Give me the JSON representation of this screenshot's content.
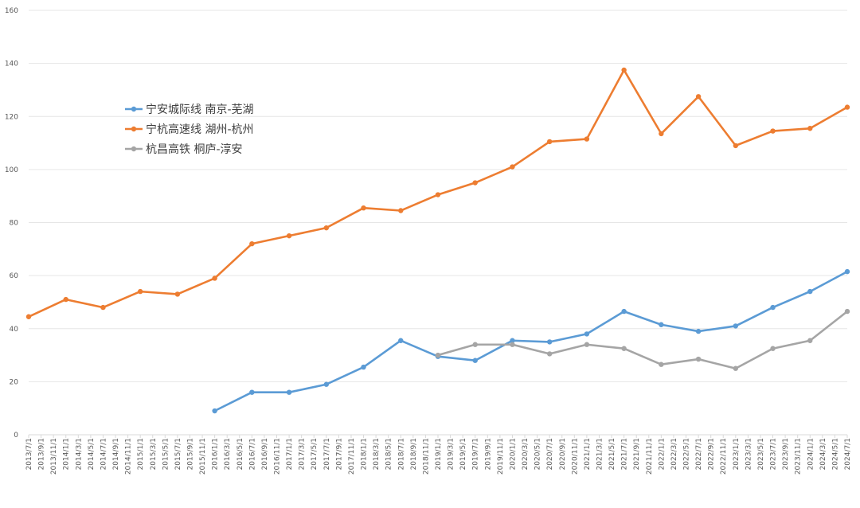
{
  "chart_data": {
    "type": "line",
    "ylim": [
      0,
      160
    ],
    "yticks": [
      0,
      20,
      40,
      60,
      80,
      100,
      120,
      140,
      160
    ],
    "grid": true,
    "legend_position": "top-left",
    "categories": [
      "2013/7/1",
      "2013/9/1",
      "2013/11/1",
      "2014/1/1",
      "2014/3/1",
      "2014/5/1",
      "2014/7/1",
      "2014/9/1",
      "2014/11/1",
      "2015/1/1",
      "2015/3/1",
      "2015/5/1",
      "2015/7/1",
      "2015/9/1",
      "2015/11/1",
      "2016/1/1",
      "2016/3/1",
      "2016/5/1",
      "2016/7/1",
      "2016/9/1",
      "2016/11/1",
      "2017/1/1",
      "2017/3/1",
      "2017/5/1",
      "2017/7/1",
      "2017/9/1",
      "2017/11/1",
      "2018/1/1",
      "2018/3/1",
      "2018/5/1",
      "2018/7/1",
      "2018/9/1",
      "2018/11/1",
      "2019/1/1",
      "2019/3/1",
      "2019/5/1",
      "2019/7/1",
      "2019/9/1",
      "2019/11/1",
      "2020/1/1",
      "2020/3/1",
      "2020/5/1",
      "2020/7/1",
      "2020/9/1",
      "2020/11/1",
      "2021/1/1",
      "2021/3/1",
      "2021/5/1",
      "2021/7/1",
      "2021/9/1",
      "2021/11/1",
      "2022/1/1",
      "2022/3/1",
      "2022/5/1",
      "2022/7/1",
      "2022/9/1",
      "2022/11/1",
      "2023/1/1",
      "2023/3/1",
      "2023/5/1",
      "2023/7/1",
      "2023/9/1",
      "2023/11/1",
      "2024/1/1",
      "2024/3/1",
      "2024/5/1",
      "2024/7/1"
    ],
    "series": [
      {
        "name": "宁安城际线 南京-芜湖",
        "color": "#5b9bd5",
        "points": [
          [
            "2016/1/1",
            9
          ],
          [
            "2016/7/1",
            16
          ],
          [
            "2017/1/1",
            16
          ],
          [
            "2017/7/1",
            19
          ],
          [
            "2018/1/1",
            25.5
          ],
          [
            "2018/7/1",
            35.5
          ],
          [
            "2019/1/1",
            29.5
          ],
          [
            "2019/7/1",
            28
          ],
          [
            "2020/1/1",
            35.5
          ],
          [
            "2020/7/1",
            35
          ],
          [
            "2021/1/1",
            38
          ],
          [
            "2021/7/1",
            46.5
          ],
          [
            "2022/1/1",
            41.5
          ],
          [
            "2022/7/1",
            39
          ],
          [
            "2023/1/1",
            41
          ],
          [
            "2023/7/1",
            48
          ],
          [
            "2024/1/1",
            54
          ],
          [
            "2024/7/1",
            61.5
          ]
        ]
      },
      {
        "name": "宁杭高速线 湖州-杭州",
        "color": "#ed7d31",
        "points": [
          [
            "2013/7/1",
            44.5
          ],
          [
            "2014/1/1",
            51
          ],
          [
            "2014/7/1",
            48
          ],
          [
            "2015/1/1",
            54
          ],
          [
            "2015/7/1",
            53
          ],
          [
            "2016/1/1",
            59
          ],
          [
            "2016/7/1",
            72
          ],
          [
            "2017/1/1",
            75
          ],
          [
            "2017/7/1",
            78
          ],
          [
            "2018/1/1",
            85.5
          ],
          [
            "2018/7/1",
            84.5
          ],
          [
            "2019/1/1",
            90.5
          ],
          [
            "2019/7/1",
            95
          ],
          [
            "2020/1/1",
            101
          ],
          [
            "2020/7/1",
            110.5
          ],
          [
            "2021/1/1",
            111.5
          ],
          [
            "2021/7/1",
            137.5
          ],
          [
            "2022/1/1",
            113.5
          ],
          [
            "2022/7/1",
            127.5
          ],
          [
            "2023/1/1",
            109
          ],
          [
            "2023/7/1",
            114.5
          ],
          [
            "2024/1/1",
            115.5
          ],
          [
            "2024/7/1",
            123.5
          ]
        ]
      },
      {
        "name": "杭昌高铁 桐庐-淳安",
        "color": "#a5a5a5",
        "points": [
          [
            "2019/1/1",
            30
          ],
          [
            "2019/7/1",
            34
          ],
          [
            "2020/1/1",
            34
          ],
          [
            "2020/7/1",
            30.5
          ],
          [
            "2021/1/1",
            34
          ],
          [
            "2021/7/1",
            32.5
          ],
          [
            "2022/1/1",
            26.5
          ],
          [
            "2022/7/1",
            28.5
          ],
          [
            "2023/1/1",
            25
          ],
          [
            "2023/7/1",
            32.5
          ],
          [
            "2024/1/1",
            35.5
          ],
          [
            "2024/7/1",
            46.5
          ]
        ]
      }
    ]
  }
}
